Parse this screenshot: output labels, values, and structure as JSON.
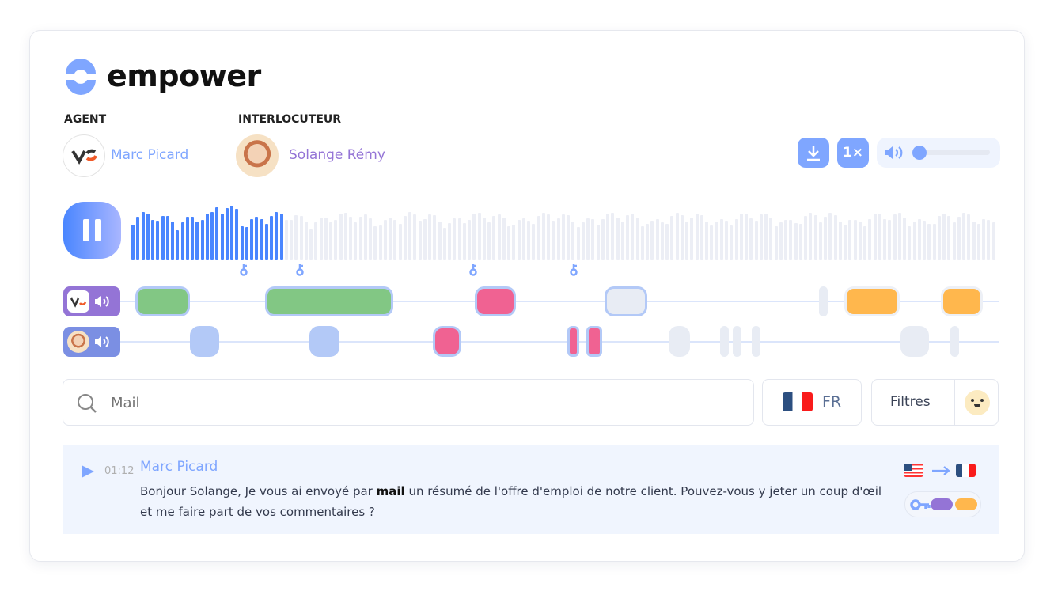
{
  "brand": {
    "name": "empower",
    "color": "#7fa6ff"
  },
  "agent": {
    "label": "AGENT",
    "name": "Marc Picard",
    "name_color": "#7fa6ff"
  },
  "interlocutor": {
    "label": "INTERLOCUTEUR",
    "name": "Solange Rémy",
    "name_color": "#9474d6"
  },
  "controls": {
    "download_icon": "download-icon",
    "speed": "1×",
    "volume_icon": "speaker-icon",
    "volume_level": 0
  },
  "player": {
    "state": "playing",
    "icon": "pause-icon",
    "progress": 0.175
  },
  "markers": {
    "icon": "key-icon",
    "count": 4
  },
  "colors": {
    "positive": "#82c784",
    "negative": "#f06292",
    "neutral": "#ffb74d",
    "speaking": "#b3c9f7",
    "inactive": "#e8ecf4",
    "played": "#4a86ff",
    "unplayed": "#eceef5"
  },
  "search": {
    "placeholder": "Mail",
    "value": ""
  },
  "language": {
    "code": "FR",
    "flag": "fr-flag"
  },
  "filters": {
    "label": "Filtres",
    "emoji_icon": "smiley-icon"
  },
  "transcript": [
    {
      "speaker": "Marc Picard",
      "time": "01:12",
      "text": "Bonjour Solange, Je vous ai envoyé par mail un résumé de l'offre d'emploi de notre client. Pouvez-vous y jeter un coup d'œil et me faire part de vos commentaires ?",
      "highlight": "mail",
      "from_lang": "us-flag",
      "to_lang": "fr-flag",
      "tags": [
        "key-icon",
        "purple-tag",
        "orange-tag"
      ]
    }
  ]
}
